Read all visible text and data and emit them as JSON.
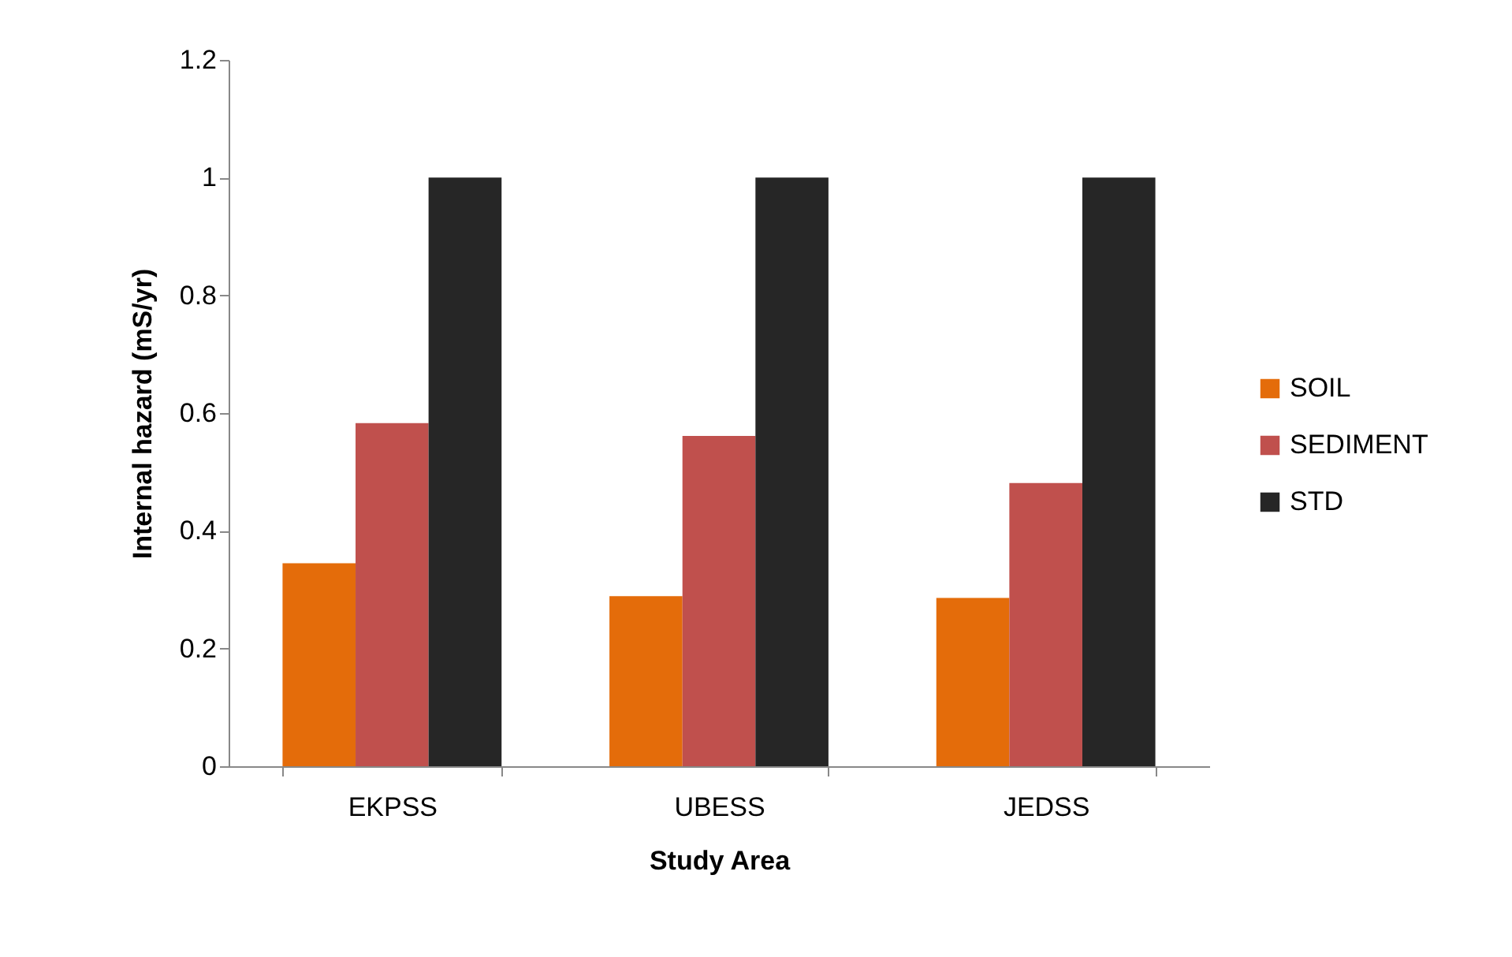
{
  "chart_data": {
    "type": "bar",
    "xlabel": "Study Area",
    "ylabel": "Internal hazard (mS/yr)",
    "categories": [
      "EKPSS",
      "UBESS",
      "JEDSS"
    ],
    "series": [
      {
        "name": "SOIL",
        "color": "#e46c0a",
        "values": [
          0.345,
          0.289,
          0.286
        ]
      },
      {
        "name": "SEDIMENT",
        "color": "#c0504d",
        "values": [
          0.583,
          0.561,
          0.481
        ]
      },
      {
        "name": "STD",
        "color": "#262626",
        "values": [
          1,
          1,
          1
        ]
      }
    ],
    "ylim": [
      0,
      1.2
    ],
    "yticks": [
      0,
      0.2,
      0.4,
      0.6,
      0.8,
      1,
      1.2
    ],
    "grid": false,
    "legend": "right"
  }
}
